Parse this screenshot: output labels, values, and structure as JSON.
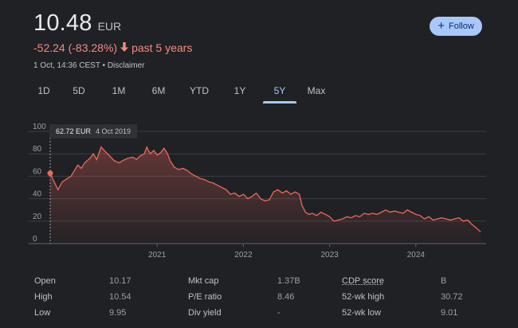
{
  "header": {
    "price": "10.48",
    "currency": "EUR",
    "change": "-52.24 (-83.28%)",
    "period": "past 5 years",
    "timestamp": "1 Oct, 14:36 CEST",
    "separator": "•",
    "disclaimer": "Disclaimer",
    "follow_label": "Follow"
  },
  "colors": {
    "negative": "#f28b82",
    "accent": "#a8c7fa",
    "line": "#ee675c"
  },
  "tabs": [
    {
      "label": "1D"
    },
    {
      "label": "5D"
    },
    {
      "label": "1M"
    },
    {
      "label": "6M"
    },
    {
      "label": "YTD"
    },
    {
      "label": "1Y"
    },
    {
      "label": "5Y",
      "active": true
    },
    {
      "label": "Max"
    }
  ],
  "tooltip": {
    "value": "62.72 EUR",
    "date": "4 Oct 2019"
  },
  "chart_data": {
    "type": "area",
    "x_tick_labels": [
      "2021",
      "2022",
      "2023",
      "2024"
    ],
    "y_tick_labels": [
      "0",
      "20",
      "40",
      "60",
      "80",
      "100"
    ],
    "ylim": [
      0,
      100
    ],
    "xlim": [
      2019.76,
      2024.75
    ],
    "grid": true,
    "series": [
      {
        "points": [
          [
            2019.76,
            62.7
          ],
          [
            2019.8,
            56
          ],
          [
            2019.85,
            48
          ],
          [
            2019.9,
            55
          ],
          [
            2019.96,
            58
          ],
          [
            2020.0,
            60
          ],
          [
            2020.04,
            65
          ],
          [
            2020.08,
            70
          ],
          [
            2020.12,
            67
          ],
          [
            2020.16,
            72
          ],
          [
            2020.22,
            76
          ],
          [
            2020.26,
            80
          ],
          [
            2020.3,
            75
          ],
          [
            2020.35,
            86
          ],
          [
            2020.4,
            82
          ],
          [
            2020.45,
            78
          ],
          [
            2020.5,
            74
          ],
          [
            2020.56,
            72
          ],
          [
            2020.6,
            74
          ],
          [
            2020.66,
            76
          ],
          [
            2020.72,
            77
          ],
          [
            2020.76,
            75
          ],
          [
            2020.8,
            78
          ],
          [
            2020.85,
            80
          ],
          [
            2020.88,
            86
          ],
          [
            2020.92,
            80
          ],
          [
            2020.96,
            83
          ],
          [
            2021.0,
            79
          ],
          [
            2021.04,
            81
          ],
          [
            2021.08,
            85
          ],
          [
            2021.12,
            80
          ],
          [
            2021.15,
            74
          ],
          [
            2021.2,
            68
          ],
          [
            2021.25,
            66
          ],
          [
            2021.3,
            67
          ],
          [
            2021.35,
            65
          ],
          [
            2021.4,
            62
          ],
          [
            2021.45,
            60
          ],
          [
            2021.5,
            58
          ],
          [
            2021.55,
            57
          ],
          [
            2021.6,
            55
          ],
          [
            2021.65,
            54
          ],
          [
            2021.7,
            52
          ],
          [
            2021.75,
            50
          ],
          [
            2021.8,
            48
          ],
          [
            2021.85,
            44
          ],
          [
            2021.9,
            45
          ],
          [
            2021.95,
            42
          ],
          [
            2022.0,
            44
          ],
          [
            2022.05,
            40
          ],
          [
            2022.1,
            42
          ],
          [
            2022.15,
            45
          ],
          [
            2022.2,
            40
          ],
          [
            2022.25,
            38
          ],
          [
            2022.3,
            39
          ],
          [
            2022.35,
            46
          ],
          [
            2022.4,
            48
          ],
          [
            2022.45,
            45
          ],
          [
            2022.5,
            47
          ],
          [
            2022.55,
            44
          ],
          [
            2022.6,
            46
          ],
          [
            2022.65,
            44
          ],
          [
            2022.68,
            34
          ],
          [
            2022.72,
            28
          ],
          [
            2022.76,
            26
          ],
          [
            2022.8,
            27
          ],
          [
            2022.85,
            25
          ],
          [
            2022.9,
            28
          ],
          [
            2022.95,
            26
          ],
          [
            2023.0,
            24
          ],
          [
            2023.05,
            20
          ],
          [
            2023.1,
            21
          ],
          [
            2023.15,
            22
          ],
          [
            2023.2,
            24
          ],
          [
            2023.25,
            23
          ],
          [
            2023.3,
            25
          ],
          [
            2023.35,
            24
          ],
          [
            2023.4,
            27
          ],
          [
            2023.45,
            26
          ],
          [
            2023.5,
            27
          ],
          [
            2023.55,
            26
          ],
          [
            2023.6,
            28
          ],
          [
            2023.65,
            30
          ],
          [
            2023.7,
            28
          ],
          [
            2023.75,
            29
          ],
          [
            2023.8,
            28
          ],
          [
            2023.85,
            27
          ],
          [
            2023.9,
            30
          ],
          [
            2023.95,
            28
          ],
          [
            2024.0,
            26
          ],
          [
            2024.05,
            25
          ],
          [
            2024.1,
            22
          ],
          [
            2024.15,
            24
          ],
          [
            2024.2,
            21
          ],
          [
            2024.25,
            22
          ],
          [
            2024.3,
            23
          ],
          [
            2024.35,
            22
          ],
          [
            2024.4,
            21
          ],
          [
            2024.45,
            22
          ],
          [
            2024.5,
            23
          ],
          [
            2024.55,
            20
          ],
          [
            2024.6,
            21
          ],
          [
            2024.65,
            17
          ],
          [
            2024.7,
            14
          ],
          [
            2024.75,
            10.5
          ]
        ]
      }
    ]
  },
  "stats": {
    "col1": [
      {
        "label": "Open",
        "value": "10.17"
      },
      {
        "label": "High",
        "value": "10.54"
      },
      {
        "label": "Low",
        "value": "9.95"
      }
    ],
    "col2": [
      {
        "label": "Mkt cap",
        "value": "1.37B"
      },
      {
        "label": "P/E ratio",
        "value": "8.46"
      },
      {
        "label": "Div yield",
        "value": "-"
      }
    ],
    "col3": [
      {
        "label": "CDP score",
        "value": "B"
      },
      {
        "label": "52-wk high",
        "value": "30.72"
      },
      {
        "label": "52-wk low",
        "value": "9.01"
      }
    ]
  }
}
